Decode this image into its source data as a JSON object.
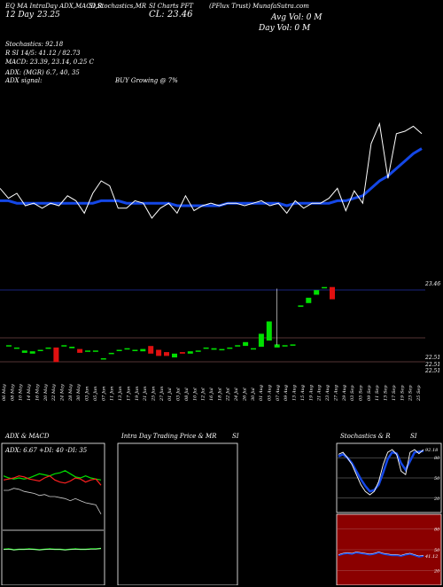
{
  "header": {
    "line1": "EQ MA IntraDay ADX,MACD,R",
    "line1b": "SI,Stochastics,MR",
    "line1c": "SI Charts PFT",
    "line1d": "(PFlux Trust) MunafaSutra.com",
    "day": "12 Day",
    "day_value": "23.25",
    "close_label": "CL: 23.46",
    "avg_vol": "Avg Vol: 0   M",
    "day_vol": "Day Vol: 0   M"
  },
  "indicators": {
    "stochastics": "Stochastics: 92.18",
    "rsi": "R                    SI 14/5: 41.12 / 82.73",
    "macd": "MACD: 23.39, 23.14, 0.25 C",
    "adx": "ADX:                          (MGR) 6.7,  40,  35",
    "adx_signal": "ADX  signal:",
    "buy_signal": "BUY Growing @ 7%"
  },
  "price_labels": {
    "top": "23.46",
    "bottom1": "22.51",
    "bottom2": "22.51",
    "bottom3": "22.51"
  },
  "dates": [
    "06 May",
    "08 May",
    "10 May",
    "14 May",
    "16 May",
    "20 May",
    "22 May",
    "24 May",
    "28 May",
    "30 May",
    "03 Jun",
    "05 Jun",
    "07 Jun",
    "11 Jun",
    "13 Jun",
    "17 Jun",
    "19 Jun",
    "21 Jun",
    "25 Jun",
    "27 Jun",
    "01 Jul",
    "03 Jul",
    "08 Jul",
    "10 Jul",
    "12 Jul",
    "16 Jul",
    "18 Jul",
    "22 Jul",
    "24 Jul",
    "26 Jul",
    "30 Jul",
    "01 Aug",
    "05 Aug",
    "07 Aug",
    "09 Aug",
    "13 Aug",
    "15 Aug",
    "19 Aug",
    "21 Aug",
    "23 Aug",
    "27 Aug",
    "29 Aug",
    "03 Sep",
    "05 Sep",
    "09 Sep",
    "11 Sep",
    "13 Sep",
    "17 Sep",
    "19 Sep",
    "23 Sep",
    "25 Sep"
  ],
  "panels": {
    "adx_title": "ADX  & MACD",
    "adx_legend": "ADX: 6.67  +DI: 40  -DI: 35",
    "intra_title": "Intra  Day Trading Price  & MR",
    "intra_title_b": "SI",
    "stoch_title": "Stochastics & R",
    "stoch_title_b": "SI",
    "stoch_ticks": [
      "80",
      "50",
      "20"
    ],
    "rsi_ticks": [
      "80",
      "50",
      "20"
    ],
    "stoch_value": "92.18",
    "rsi_value": "41.12"
  },
  "colors": {
    "ma": "#1447e6",
    "up": "#00e000",
    "down": "#e01010",
    "rsi_bg": "#8b0000",
    "white": "#ffffff",
    "dark_line": "#552222"
  },
  "chart_data": {
    "type": "line",
    "price_line": [
      22.92,
      22.88,
      22.9,
      22.85,
      22.86,
      22.84,
      22.86,
      22.85,
      22.89,
      22.87,
      22.82,
      22.9,
      22.95,
      22.93,
      22.84,
      22.84,
      22.87,
      22.86,
      22.8,
      22.84,
      22.86,
      22.82,
      22.89,
      22.83,
      22.85,
      22.86,
      22.85,
      22.86,
      22.86,
      22.85,
      22.86,
      22.87,
      22.85,
      22.86,
      22.82,
      22.87,
      22.84,
      22.86,
      22.86,
      22.88,
      22.92,
      22.83,
      22.91,
      22.86,
      23.1,
      23.18,
      22.96,
      23.14,
      23.15,
      23.17,
      23.14
    ],
    "ma_line": [
      22.87,
      22.87,
      22.86,
      22.86,
      22.86,
      22.86,
      22.86,
      22.86,
      22.86,
      22.86,
      22.86,
      22.86,
      22.87,
      22.87,
      22.87,
      22.86,
      22.86,
      22.86,
      22.86,
      22.86,
      22.86,
      22.85,
      22.85,
      22.85,
      22.85,
      22.85,
      22.85,
      22.86,
      22.86,
      22.86,
      22.86,
      22.86,
      22.86,
      22.86,
      22.85,
      22.86,
      22.86,
      22.86,
      22.86,
      22.86,
      22.87,
      22.87,
      22.88,
      22.89,
      22.92,
      22.95,
      22.97,
      23.0,
      23.03,
      23.06,
      23.08
    ],
    "candles": [
      {
        "o": 22.72,
        "c": 22.71,
        "dir": "up"
      },
      {
        "o": 22.69,
        "c": 22.68,
        "dir": "up"
      },
      {
        "o": 22.62,
        "c": 22.65,
        "dir": "up"
      },
      {
        "o": 22.61,
        "c": 22.64,
        "dir": "up"
      },
      {
        "o": 22.65,
        "c": 22.66,
        "dir": "up"
      },
      {
        "o": 22.69,
        "c": 22.69,
        "dir": "up"
      },
      {
        "o": 22.69,
        "c": 22.5,
        "dir": "down"
      },
      {
        "o": 22.72,
        "c": 22.72,
        "dir": "up"
      },
      {
        "o": 22.7,
        "c": 22.68,
        "dir": "up"
      },
      {
        "o": 22.67,
        "c": 22.62,
        "dir": "down"
      },
      {
        "o": 22.64,
        "c": 22.65,
        "dir": "up"
      },
      {
        "o": 22.65,
        "c": 22.64,
        "dir": "up"
      },
      {
        "o": 22.55,
        "c": 22.55,
        "dir": "up"
      },
      {
        "o": 22.62,
        "c": 22.62,
        "dir": "up"
      },
      {
        "o": 22.66,
        "c": 22.66,
        "dir": "up"
      },
      {
        "o": 22.68,
        "c": 22.67,
        "dir": "up"
      },
      {
        "o": 22.66,
        "c": 22.66,
        "dir": "up"
      },
      {
        "o": 22.64,
        "c": 22.67,
        "dir": "up"
      },
      {
        "o": 22.71,
        "c": 22.61,
        "dir": "down"
      },
      {
        "o": 22.66,
        "c": 22.58,
        "dir": "down"
      },
      {
        "o": 22.63,
        "c": 22.58,
        "dir": "down"
      },
      {
        "o": 22.56,
        "c": 22.61,
        "dir": "up"
      },
      {
        "o": 22.63,
        "c": 22.61,
        "dir": "down"
      },
      {
        "o": 22.61,
        "c": 22.64,
        "dir": "up"
      },
      {
        "o": 22.64,
        "c": 22.65,
        "dir": "up"
      },
      {
        "o": 22.69,
        "c": 22.69,
        "dir": "up"
      },
      {
        "o": 22.66,
        "c": 22.68,
        "dir": "up"
      },
      {
        "o": 22.66,
        "c": 22.67,
        "dir": "up"
      },
      {
        "o": 22.69,
        "c": 22.69,
        "dir": "up"
      },
      {
        "o": 22.72,
        "c": 22.72,
        "dir": "up"
      },
      {
        "o": 22.71,
        "c": 22.76,
        "dir": "up"
      },
      {
        "o": 22.68,
        "c": 22.68,
        "dir": "up"
      },
      {
        "o": 22.7,
        "c": 22.87,
        "dir": "up"
      },
      {
        "o": 22.78,
        "c": 23.03,
        "dir": "up"
      },
      {
        "o": 22.69,
        "c": 22.73,
        "dir": "up"
      },
      {
        "o": 22.72,
        "c": 22.72,
        "dir": "up"
      },
      {
        "o": 22.73,
        "c": 22.73,
        "dir": "up"
      },
      {
        "o": 23.22,
        "c": 23.24,
        "dir": "up"
      },
      {
        "o": 23.27,
        "c": 23.34,
        "dir": "up"
      },
      {
        "o": 23.38,
        "c": 23.44,
        "dir": "up"
      },
      {
        "o": 23.47,
        "c": 23.48,
        "dir": "up"
      },
      {
        "o": 23.48,
        "c": 23.32,
        "dir": "down"
      }
    ],
    "adx": {
      "plus_di": [
        44,
        42,
        41,
        42,
        41,
        42,
        44,
        46,
        45,
        44,
        46,
        47,
        49,
        46,
        43,
        42,
        44,
        42,
        41,
        40
      ],
      "minus_di": [
        40,
        41,
        42,
        44,
        43,
        41,
        40,
        39,
        42,
        44,
        40,
        38,
        37,
        39,
        42,
        41,
        38,
        40,
        41,
        35
      ],
      "adx": [
        30,
        30,
        32,
        31,
        29,
        28,
        27,
        25,
        26,
        24,
        24,
        23,
        22,
        20,
        22,
        20,
        18,
        17,
        16,
        7
      ],
      "macd": [
        5,
        6,
        4,
        5,
        5,
        6,
        5,
        4,
        5,
        6,
        5,
        5,
        4,
        5,
        6,
        5,
        5,
        6,
        6,
        7
      ]
    },
    "stochastics": {
      "k": [
        85,
        88,
        80,
        70,
        55,
        40,
        30,
        25,
        30,
        45,
        70,
        88,
        92,
        85,
        60,
        55,
        88,
        92,
        86,
        92
      ],
      "d": [
        82,
        85,
        80,
        72,
        60,
        48,
        38,
        30,
        32,
        40,
        58,
        78,
        88,
        86,
        72,
        62,
        75,
        88,
        89,
        90
      ]
    },
    "rsi": [
      42,
      44,
      45,
      44,
      46,
      45,
      44,
      43,
      44,
      46,
      44,
      43,
      42,
      42,
      41,
      43,
      44,
      42,
      40,
      41
    ]
  }
}
